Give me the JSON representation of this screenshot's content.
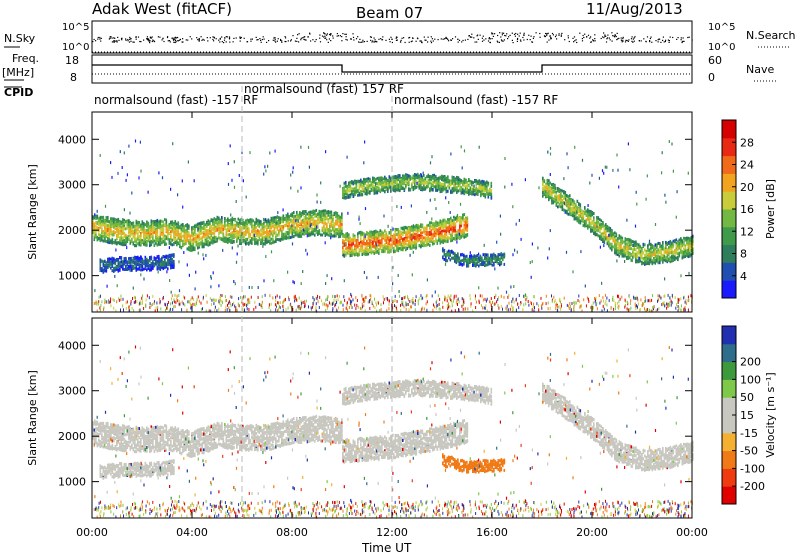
{
  "header": {
    "station": "Adak West (fitACF)",
    "beam": "Beam 07",
    "date": "11/Aug/2013"
  },
  "params": {
    "nsky_label": "N.Sky",
    "nsearch_label": "N.Search",
    "nsky_ticks": [
      "10^5",
      "10^0"
    ],
    "freq_label": "Freq.",
    "freq_unit": "[MHz]",
    "freq_ticks": [
      "18",
      "8"
    ],
    "nave_label": "Nave",
    "nave_ticks": [
      "60",
      "0"
    ],
    "cpid_label": "CPID"
  },
  "cpid_segments": [
    {
      "text": "normalsound (fast) -157 RF"
    },
    {
      "text": "normalsound (fast) 157 RF"
    },
    {
      "text": "normalsound (fast) -157 RF"
    }
  ],
  "colors": {
    "power": [
      "#1a1aff",
      "#1f4fb0",
      "#2e7d5c",
      "#3f9a4a",
      "#72b843",
      "#c8cc3a",
      "#f2a320",
      "#f06a1a",
      "#e82a14",
      "#d60000"
    ],
    "velocity": [
      "#e00000",
      "#f03a10",
      "#f07a15",
      "#f4b030",
      "#c8c8c0",
      "#c8c8c0",
      "#7ec84a",
      "#3c9a3c",
      "#2e6e8a",
      "#2030b0"
    ],
    "ground": [
      "#e00000",
      "#f07a15",
      "#7ec84a",
      "#2030b0",
      "#c8cc3a"
    ]
  },
  "chart_data": {
    "type": "heatmap",
    "x_unit": "hours UT",
    "xlim": [
      0,
      24
    ],
    "x_ticks": [
      "00:00",
      "04:00",
      "08:00",
      "12:00",
      "16:00",
      "20:00",
      "00:00"
    ],
    "x_tick_values": [
      0,
      4,
      8,
      12,
      16,
      20,
      24
    ],
    "xlabel": "Time UT",
    "ylabel": "Slant Range [km]",
    "ylim": [
      200,
      4600
    ],
    "y_ticks": [
      "1000",
      "2000",
      "3000",
      "4000"
    ],
    "y_tick_values": [
      1000,
      2000,
      3000,
      4000
    ],
    "cpid_switch_hours": [
      6,
      12
    ],
    "freq_step_hours": [
      10,
      18
    ],
    "panels": [
      {
        "quantity": "power",
        "colorbar_label": "Power [dB]",
        "colorbar_ticks": [
          "28",
          "24",
          "20",
          "16",
          "12",
          "8",
          "4"
        ],
        "colorbar_values": [
          28,
          24,
          20,
          16,
          12,
          8,
          4
        ],
        "range": [
          0,
          32
        ]
      },
      {
        "quantity": "velocity",
        "colorbar_label": "Velocity [m s⁻¹]",
        "colorbar_ticks": [
          "200",
          "100",
          "50",
          "15",
          "-15",
          "-50",
          "-100",
          "-200"
        ],
        "range": [
          -250,
          250
        ]
      }
    ],
    "echo_bands": [
      {
        "t": [
          0,
          1,
          2,
          3,
          4,
          5,
          6,
          7,
          8,
          9,
          10
        ],
        "range_km": [
          2100,
          2000,
          1950,
          2000,
          1850,
          2050,
          2000,
          2000,
          2150,
          2200,
          2150
        ],
        "width_km": 550,
        "power_db": 21,
        "velocity": 0
      },
      {
        "t": [
          10,
          11,
          12,
          13,
          14,
          15
        ],
        "range_km": [
          1700,
          1750,
          1800,
          1900,
          2000,
          2150
        ],
        "width_km": 500,
        "power_db": 26,
        "velocity": 0
      },
      {
        "t": [
          0.3,
          1.5,
          2.5,
          3.3
        ],
        "range_km": [
          1250,
          1300,
          1300,
          1350
        ],
        "width_km": 300,
        "power_db": 7,
        "velocity": 0
      },
      {
        "t": [
          10,
          11,
          12,
          13,
          14,
          15,
          16
        ],
        "range_km": [
          2900,
          3000,
          3050,
          3100,
          3050,
          3000,
          2900
        ],
        "width_km": 350,
        "power_db": 17,
        "velocity": 0
      },
      {
        "t": [
          14,
          15,
          16.5
        ],
        "range_km": [
          1500,
          1350,
          1400
        ],
        "width_km": 250,
        "power_db": 10,
        "velocity": -80
      },
      {
        "t": [
          18,
          19,
          20,
          21,
          22,
          23,
          24
        ],
        "range_km": [
          3000,
          2600,
          2200,
          1700,
          1500,
          1550,
          1700
        ],
        "width_km": 450,
        "power_db": 19,
        "velocity": 0
      }
    ]
  }
}
